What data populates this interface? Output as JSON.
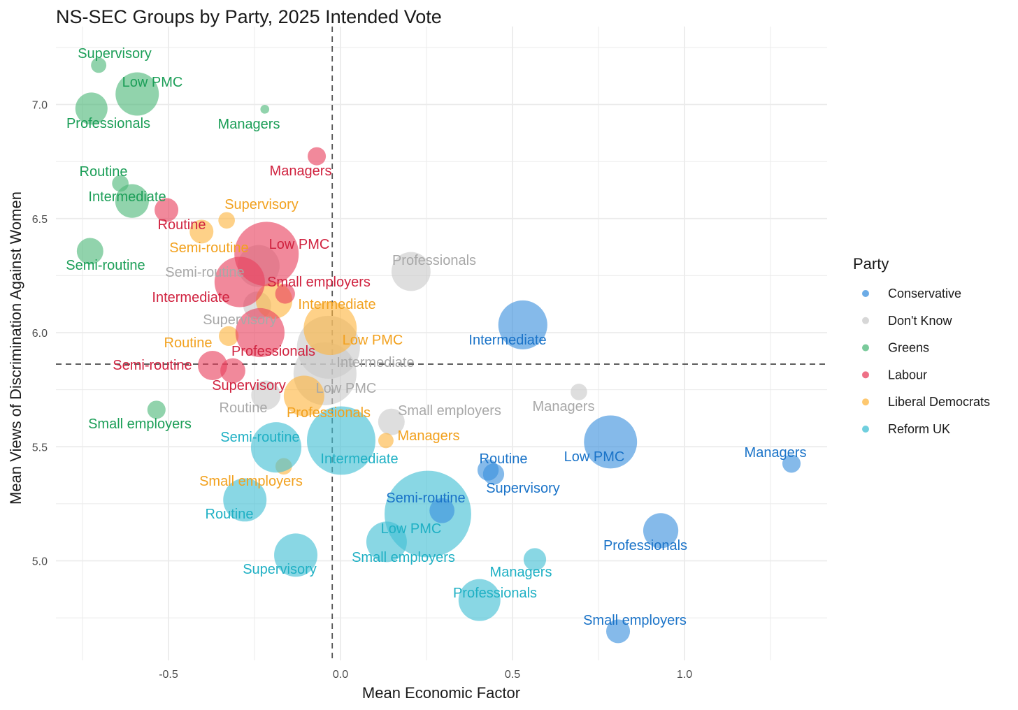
{
  "chart_data": {
    "type": "scatter",
    "title": "NS-SEC Groups by Party, 2025 Intended Vote",
    "xlabel": "Mean Economic Factor",
    "ylabel": "Mean Views of Discrimination Against Women",
    "xlim": [
      -0.75,
      1.4
    ],
    "ylim": [
      4.6,
      7.35
    ],
    "x_ticks": [
      -0.5,
      0.0,
      0.5,
      1.0
    ],
    "x_tick_labels": [
      "-0.5",
      "0.0",
      "0.5",
      "1.0"
    ],
    "y_ticks": [
      5.0,
      5.5,
      6.0,
      6.5,
      7.0
    ],
    "y_tick_labels": [
      "5.0",
      "5.5",
      "6.0",
      "6.5",
      "7.0"
    ],
    "grid": true,
    "reference_lines": {
      "x": -0.024,
      "y": 5.862
    },
    "legend": {
      "title": "Party",
      "placement": "right"
    },
    "size_note": "relative group size",
    "series": [
      {
        "name": "Conservative",
        "color": "#3a8fdd",
        "label_color": "#1a73c8",
        "points": [
          {
            "label": "Intermediate",
            "x": 0.53,
            "y": 6.034,
            "size": 12.3
          },
          {
            "label": "Low PMC",
            "x": 0.785,
            "y": 5.521,
            "size": 14.4
          },
          {
            "label": "Managers",
            "x": 1.311,
            "y": 5.426,
            "size": 1.7
          },
          {
            "label": "Routine",
            "x": 0.429,
            "y": 5.398,
            "size": 2.3
          },
          {
            "label": "Supervisory",
            "x": 0.445,
            "y": 5.38,
            "size": 2.3
          },
          {
            "label": "Semi-routine",
            "x": 0.295,
            "y": 5.22,
            "size": 3.2
          },
          {
            "label": "Professionals",
            "x": 0.931,
            "y": 5.132,
            "size": 6.3
          },
          {
            "label": "Small employers",
            "x": 0.807,
            "y": 4.691,
            "size": 2.9
          }
        ]
      },
      {
        "name": "Don't Know",
        "color": "#c9c9c9",
        "label_color": "#a8a8a8",
        "points": [
          {
            "label": "Professionals",
            "x": 0.205,
            "y": 6.268,
            "size": 7.8
          },
          {
            "label": "Semi-routine",
            "x": -0.238,
            "y": 6.292,
            "size": 9.0
          },
          {
            "label": "Supervisory",
            "x": -0.242,
            "y": 6.119,
            "size": 4.0
          },
          {
            "label": "Low PMC",
            "x": -0.035,
            "y": 5.936,
            "size": 20.3
          },
          {
            "label": "Intermediate",
            "x": -0.045,
            "y": 5.82,
            "size": 20.3
          },
          {
            "label": "Routine",
            "x": -0.217,
            "y": 5.726,
            "size": 4.4
          },
          {
            "label": "Small employers",
            "x": 0.148,
            "y": 5.609,
            "size": 3.6
          },
          {
            "label": "Managers",
            "x": 0.693,
            "y": 5.74,
            "size": 1.4
          }
        ]
      },
      {
        "name": "Greens",
        "color": "#4db879",
        "label_color": "#1b9e57",
        "points": [
          {
            "label": "Supervisory",
            "x": -0.703,
            "y": 7.172,
            "size": 1.2
          },
          {
            "label": "Low PMC",
            "x": -0.591,
            "y": 7.046,
            "size": 9.6
          },
          {
            "label": "Professionals",
            "x": -0.724,
            "y": 6.982,
            "size": 5.3
          },
          {
            "label": "Managers",
            "x": -0.22,
            "y": 6.979,
            "size": 0.4
          },
          {
            "label": "Routine",
            "x": -0.64,
            "y": 6.654,
            "size": 1.4
          },
          {
            "label": "Intermediate",
            "x": -0.606,
            "y": 6.577,
            "size": 5.8
          },
          {
            "label": "Semi-routine",
            "x": -0.728,
            "y": 6.357,
            "size": 3.6
          },
          {
            "label": "Small employers",
            "x": -0.535,
            "y": 5.662,
            "size": 1.7
          }
        ]
      },
      {
        "name": "Labour",
        "color": "#e8405e",
        "label_color": "#d0223f",
        "points": [
          {
            "label": "Managers",
            "x": -0.069,
            "y": 6.773,
            "size": 1.7
          },
          {
            "label": "Routine",
            "x": -0.506,
            "y": 6.538,
            "size": 2.9
          },
          {
            "label": "Low PMC",
            "x": -0.215,
            "y": 6.345,
            "size": 21.2
          },
          {
            "label": "Intermediate",
            "x": -0.293,
            "y": 6.222,
            "size": 13.0
          },
          {
            "label": "Small employers",
            "x": -0.161,
            "y": 6.17,
            "size": 2.0
          },
          {
            "label": "Professionals",
            "x": -0.234,
            "y": 6.0,
            "size": 12.3
          },
          {
            "label": "Semi-routine",
            "x": -0.372,
            "y": 5.856,
            "size": 4.4
          },
          {
            "label": "Supervisory",
            "x": -0.313,
            "y": 5.833,
            "size": 3.2
          }
        ]
      },
      {
        "name": "Liberal Democrats",
        "color": "#fdb53f",
        "label_color": "#f2a11e",
        "points": [
          {
            "label": "Supervisory",
            "x": -0.331,
            "y": 6.492,
            "size": 1.4
          },
          {
            "label": "Semi-routine",
            "x": -0.404,
            "y": 6.443,
            "size": 2.9
          },
          {
            "label": "Intermediate",
            "x": -0.193,
            "y": 6.141,
            "size": 6.8
          },
          {
            "label": "Low PMC",
            "x": -0.03,
            "y": 6.018,
            "size": 14.4
          },
          {
            "label": "Routine",
            "x": -0.325,
            "y": 5.985,
            "size": 2.0
          },
          {
            "label": "Professionals",
            "x": -0.106,
            "y": 5.723,
            "size": 8.4
          },
          {
            "label": "Managers",
            "x": 0.132,
            "y": 5.527,
            "size": 1.2
          },
          {
            "label": "Small employers",
            "x": -0.165,
            "y": 5.414,
            "size": 1.4
          }
        ]
      },
      {
        "name": "Reform UK",
        "color": "#40bfd3",
        "label_color": "#1fb0c4",
        "points": [
          {
            "label": "Semi-routine",
            "x": -0.187,
            "y": 5.497,
            "size": 13.0
          },
          {
            "label": "Intermediate",
            "x": 0.002,
            "y": 5.527,
            "size": 24.0
          },
          {
            "label": "Routine",
            "x": -0.278,
            "y": 5.267,
            "size": 9.6
          },
          {
            "label": "Supervisory",
            "x": -0.13,
            "y": 5.025,
            "size": 9.6
          },
          {
            "label": "Small employers",
            "x": 0.134,
            "y": 5.083,
            "size": 8.4
          },
          {
            "label": "Low PMC",
            "x": 0.254,
            "y": 5.205,
            "size": 38.4
          },
          {
            "label": "Managers",
            "x": 0.565,
            "y": 5.006,
            "size": 2.6
          },
          {
            "label": "Professionals",
            "x": 0.404,
            "y": 4.828,
            "size": 9.0
          }
        ]
      }
    ]
  }
}
